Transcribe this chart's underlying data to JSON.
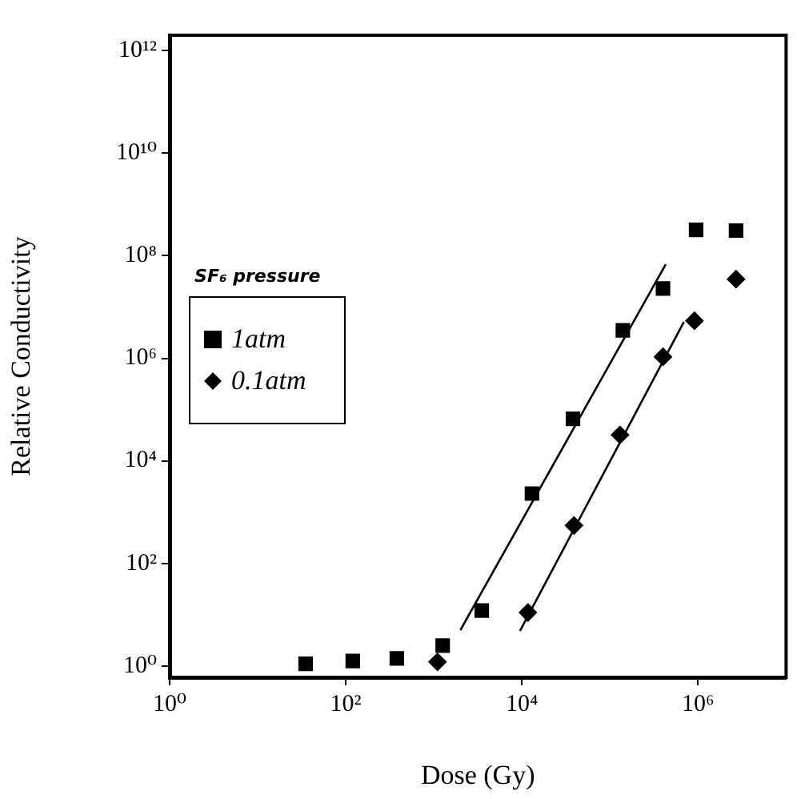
{
  "chart_data": {
    "type": "scatter",
    "xlabel": "Dose (Gy)",
    "ylabel": "Relative Conductivity",
    "legend_title": "SF₆ pressure",
    "log": "xy",
    "grid": false,
    "legend": "left",
    "xlim": [
      1,
      10000000
    ],
    "ylim": [
      0.6,
      2000000000000
    ],
    "xticks": [
      {
        "value": 1,
        "label": "10⁰"
      },
      {
        "value": 100,
        "label": "10²"
      },
      {
        "value": 10000,
        "label": "10⁴"
      },
      {
        "value": 1000000,
        "label": "10⁶"
      }
    ],
    "yticks": [
      {
        "value": 1,
        "label": "10⁰"
      },
      {
        "value": 100,
        "label": "10²"
      },
      {
        "value": 10000,
        "label": "10⁴"
      },
      {
        "value": 1000000,
        "label": "10⁶"
      },
      {
        "value": 100000000,
        "label": "10⁸"
      },
      {
        "value": 10000000000,
        "label": "10¹⁰"
      },
      {
        "value": 1000000000000,
        "label": "10¹²"
      }
    ],
    "series": [
      {
        "name": "1atm",
        "marker": "square",
        "color": "#000000",
        "x": [
          35,
          120,
          380,
          1260,
          3500,
          13000,
          38000,
          140000,
          400000,
          950000,
          2700000
        ],
        "values": [
          1.1,
          1.25,
          1.4,
          2.5,
          12,
          2300,
          66000,
          3500000,
          23000000,
          320000000,
          310000000
        ]
      },
      {
        "name": "0.1atm",
        "marker": "diamond",
        "color": "#000000",
        "x": [
          1100,
          11700,
          39000,
          130000,
          400000,
          910000,
          2700000
        ],
        "values": [
          1.2,
          11,
          550,
          32000,
          1070000,
          5400000,
          35000000
        ]
      },
      {
        "type": "line",
        "marker": "none",
        "color": "#000000",
        "x": [
          2000,
          430000
        ],
        "values": [
          5,
          68000000
        ]
      },
      {
        "type": "line",
        "marker": "none",
        "color": "#000000",
        "x": [
          9500,
          690000
        ],
        "values": [
          4.8,
          5100000
        ]
      }
    ]
  }
}
